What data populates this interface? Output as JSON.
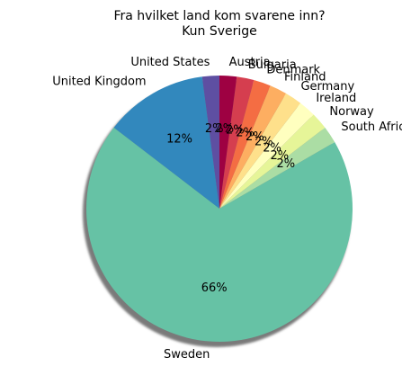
{
  "chart_data": {
    "type": "pie",
    "title": "Fra hvilket land kom svarene inn?",
    "subtitle": "Kun Sverige",
    "shadow": true,
    "start_angle_deg": 90,
    "direction": "counterclockwise",
    "colormap": "Spectral",
    "slices": [
      {
        "label": "United States",
        "value": 2,
        "pct_label": "2%",
        "color": "#5e4fa2"
      },
      {
        "label": "United Kingdom",
        "value": 12,
        "pct_label": "12%",
        "color": "#3288bd"
      },
      {
        "label": "Sweden",
        "value": 66,
        "pct_label": "66%",
        "color": "#66c2a5"
      },
      {
        "label": "South Africa",
        "value": 2,
        "pct_label": "2%",
        "color": "#abdda4"
      },
      {
        "label": "Norway",
        "value": 2,
        "pct_label": "2%",
        "color": "#e6f598"
      },
      {
        "label": "Ireland",
        "value": 2,
        "pct_label": "2%",
        "color": "#ffffbf"
      },
      {
        "label": "Germany",
        "value": 2,
        "pct_label": "2%",
        "color": "#fee08b"
      },
      {
        "label": "Finland",
        "value": 2,
        "pct_label": "2%",
        "color": "#fdae61"
      },
      {
        "label": "Denmark",
        "value": 2,
        "pct_label": "2%",
        "color": "#f46d43"
      },
      {
        "label": "Bulgaria",
        "value": 2,
        "pct_label": "2%",
        "color": "#d53e4f"
      },
      {
        "label": "Austria",
        "value": 2,
        "pct_label": "2%",
        "color": "#9e0142"
      }
    ]
  }
}
